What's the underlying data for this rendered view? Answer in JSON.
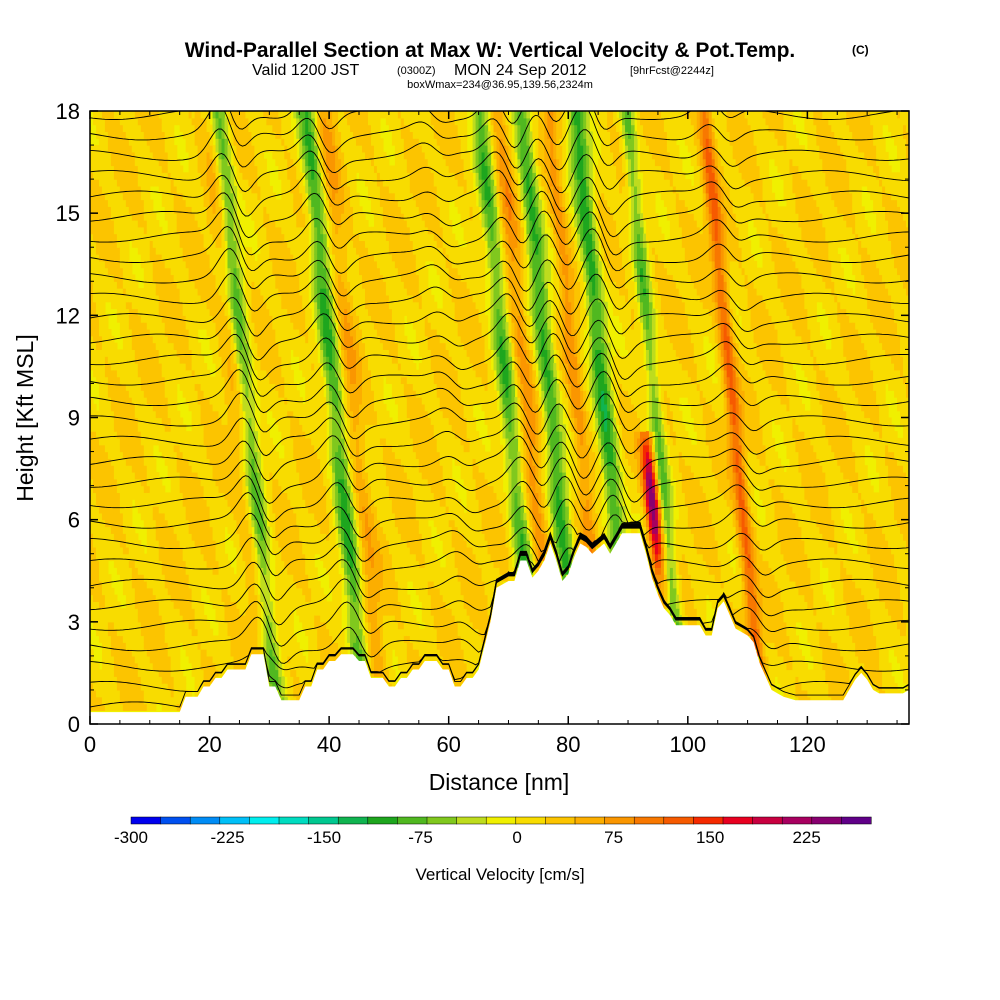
{
  "chart_data": {
    "type": "heatmap",
    "title": "Wind-Parallel Section at Max W: Vertical Velocity & Pot.Temp.",
    "title_mark": "(C)",
    "subtitle_parts": [
      "Valid 1200 JST",
      "(0300Z)",
      "MON 24 Sep 2012",
      "[9hrFcst@2244z]"
    ],
    "subtitle2": "boxWmax=234@36.95,139.56,2324m",
    "xlabel": "Distance [nm]",
    "ylabel": "Height [Kft MSL]",
    "xlim": [
      0,
      137
    ],
    "ylim": [
      0,
      18
    ],
    "x_ticks": [
      0,
      20,
      40,
      60,
      80,
      100,
      120
    ],
    "y_ticks": [
      0,
      3,
      6,
      9,
      12,
      15,
      18
    ],
    "colorbar": {
      "title": "Vertical Velocity [cm/s]",
      "range": [
        -300,
        275
      ],
      "tick_labels": [
        "-300",
        "-225",
        "-150",
        "-75",
        "0",
        "75",
        "150",
        "225"
      ],
      "tick_values": [
        -300,
        -225,
        -150,
        -75,
        0,
        75,
        150,
        225
      ],
      "colors": [
        "#0000ee",
        "#0050f0",
        "#008cf5",
        "#00c0f8",
        "#00eeee",
        "#00dcc0",
        "#00c890",
        "#10b450",
        "#1ea61e",
        "#50b820",
        "#80c81e",
        "#bedc1e",
        "#f0f000",
        "#f8dc00",
        "#fcc400",
        "#fcae00",
        "#fa9600",
        "#f87800",
        "#f65a00",
        "#f52a00",
        "#e80020",
        "#c80040",
        "#a80060",
        "#880070",
        "#600088"
      ]
    },
    "terrain": [
      [
        0,
        0.35
      ],
      [
        15,
        0.35
      ],
      [
        16,
        0.8
      ],
      [
        18,
        0.8
      ],
      [
        19,
        1.1
      ],
      [
        20,
        1.1
      ],
      [
        21,
        1.35
      ],
      [
        22,
        1.35
      ],
      [
        23,
        1.6
      ],
      [
        26,
        1.6
      ],
      [
        27,
        2.05
      ],
      [
        29,
        2.05
      ],
      [
        30,
        1.1
      ],
      [
        31,
        1.1
      ],
      [
        32,
        0.7
      ],
      [
        35,
        0.7
      ],
      [
        36,
        1.1
      ],
      [
        37,
        1.1
      ],
      [
        38,
        1.6
      ],
      [
        39,
        1.6
      ],
      [
        40,
        1.85
      ],
      [
        41,
        1.85
      ],
      [
        42,
        2.05
      ],
      [
        44,
        2.05
      ],
      [
        45,
        1.85
      ],
      [
        46,
        1.85
      ],
      [
        47,
        1.35
      ],
      [
        49,
        1.35
      ],
      [
        50,
        1.1
      ],
      [
        51,
        1.1
      ],
      [
        52,
        1.35
      ],
      [
        53,
        1.35
      ],
      [
        54,
        1.6
      ],
      [
        55,
        1.6
      ],
      [
        56,
        1.85
      ],
      [
        58,
        1.85
      ],
      [
        59,
        1.6
      ],
      [
        60,
        1.6
      ],
      [
        61,
        1.1
      ],
      [
        62,
        1.1
      ],
      [
        63,
        1.35
      ],
      [
        64,
        1.35
      ],
      [
        65,
        1.6
      ],
      [
        66,
        2.3
      ],
      [
        67,
        3.0
      ],
      [
        68,
        4.0
      ],
      [
        70,
        4.2
      ],
      [
        71,
        4.2
      ],
      [
        72,
        4.8
      ],
      [
        73,
        4.8
      ],
      [
        74,
        4.3
      ],
      [
        75,
        4.5
      ],
      [
        76,
        4.8
      ],
      [
        77,
        5.3
      ],
      [
        78,
        4.8
      ],
      [
        79,
        4.2
      ],
      [
        80,
        4.4
      ],
      [
        81,
        4.9
      ],
      [
        82,
        5.3
      ],
      [
        83,
        5.2
      ],
      [
        84,
        5.0
      ],
      [
        86,
        5.3
      ],
      [
        87,
        5.0
      ],
      [
        88,
        5.3
      ],
      [
        89,
        5.6
      ],
      [
        92,
        5.6
      ],
      [
        93,
        5.0
      ],
      [
        94,
        4.3
      ],
      [
        95,
        3.8
      ],
      [
        96,
        3.4
      ],
      [
        97,
        3.2
      ],
      [
        98,
        2.9
      ],
      [
        102,
        2.9
      ],
      [
        103,
        2.6
      ],
      [
        104,
        2.6
      ],
      [
        105,
        3.4
      ],
      [
        106,
        3.6
      ],
      [
        107,
        3.2
      ],
      [
        108,
        2.8
      ],
      [
        110,
        2.6
      ],
      [
        111,
        2.4
      ],
      [
        112,
        1.8
      ],
      [
        113,
        1.4
      ],
      [
        114,
        1.0
      ],
      [
        115,
        0.9
      ],
      [
        116,
        0.8
      ],
      [
        118,
        0.7
      ],
      [
        126,
        0.7
      ],
      [
        127,
        1.0
      ],
      [
        128,
        1.3
      ],
      [
        129,
        1.5
      ],
      [
        130,
        1.3
      ],
      [
        131,
        1.0
      ],
      [
        132,
        0.9
      ],
      [
        136,
        0.9
      ],
      [
        137,
        1.0
      ]
    ],
    "updraft_columns": [
      {
        "x0": 27,
        "x1": 30,
        "sign": 1,
        "peak": 60
      },
      {
        "x0": 28,
        "x1": 31,
        "sign": -1,
        "peak": -120
      },
      {
        "x0": 43,
        "x1": 46,
        "sign": -1,
        "peak": -110
      },
      {
        "x0": 46,
        "x1": 49,
        "sign": 1,
        "peak": 45
      },
      {
        "x0": 72,
        "x1": 75,
        "sign": -1,
        "peak": -100
      },
      {
        "x0": 75,
        "x1": 78,
        "sign": 1,
        "peak": 60
      },
      {
        "x0": 79,
        "x1": 82,
        "sign": -1,
        "peak": -110
      },
      {
        "x0": 84,
        "x1": 86,
        "sign": 1,
        "peak": 60
      },
      {
        "x0": 88,
        "x1": 91,
        "sign": -1,
        "peak": -120
      },
      {
        "x0": 95,
        "x1": 97,
        "sign": 1,
        "peak": 234
      },
      {
        "x0": 97,
        "x1": 99,
        "sign": -1,
        "peak": -90
      },
      {
        "x0": 110,
        "x1": 112,
        "sign": 1,
        "peak": 100
      }
    ]
  }
}
